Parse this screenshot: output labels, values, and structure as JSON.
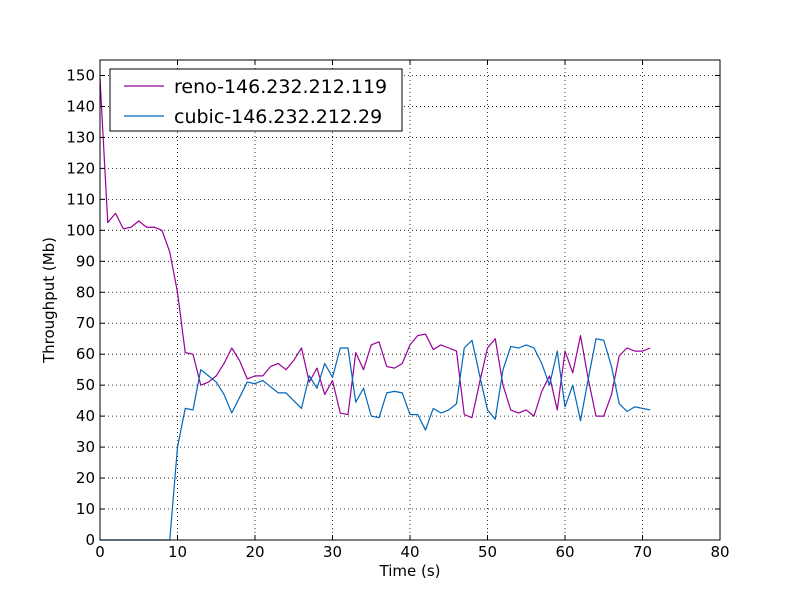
{
  "chart_data": {
    "type": "line",
    "title": "",
    "xlabel": "Time (s)",
    "ylabel": "Throughput (Mb)",
    "xlim": [
      0,
      80
    ],
    "ylim": [
      0,
      155
    ],
    "xticks": [
      0,
      10,
      20,
      30,
      40,
      50,
      60,
      70,
      80
    ],
    "yticks": [
      0,
      10,
      20,
      30,
      40,
      50,
      60,
      70,
      80,
      90,
      100,
      110,
      120,
      130,
      140,
      150
    ],
    "grid": true,
    "legend_position": "top-left",
    "series": [
      {
        "name": "reno-146.232.212.119",
        "color": "#990099",
        "x": [
          0,
          1,
          2,
          3,
          4,
          5,
          6,
          7,
          8,
          9,
          10,
          11,
          12,
          13,
          14,
          15,
          16,
          17,
          18,
          19,
          20,
          21,
          22,
          23,
          24,
          25,
          26,
          27,
          28,
          29,
          30,
          31,
          32,
          33,
          34,
          35,
          36,
          37,
          38,
          39,
          40,
          41,
          42,
          43,
          44,
          45,
          46,
          47,
          48,
          49,
          50,
          51,
          52,
          53,
          54,
          55,
          56,
          57,
          58,
          59,
          60,
          61,
          62,
          63,
          64,
          65,
          66,
          67,
          68,
          69,
          70,
          71
        ],
        "y": [
          149,
          102.5,
          105.5,
          100.5,
          101,
          103,
          101,
          101,
          100,
          93,
          80,
          60.5,
          60,
          50,
          51,
          53,
          57,
          62,
          58,
          52,
          53,
          53,
          56,
          57,
          55,
          58,
          62,
          51,
          55.5,
          47,
          51.5,
          41,
          40.5,
          60.5,
          55,
          63,
          64,
          56,
          55.5,
          57,
          63,
          66,
          66.5,
          61.5,
          63,
          62,
          61,
          40.5,
          39.5,
          51,
          62,
          65,
          50,
          42,
          41,
          42,
          40,
          48,
          53,
          42,
          61,
          54,
          66,
          52,
          40,
          40,
          47,
          59.5,
          62,
          61,
          61,
          62
        ]
      },
      {
        "name": "cubic-146.232.212.29",
        "color": "#0066bb",
        "x": [
          0,
          1,
          2,
          3,
          4,
          5,
          6,
          7,
          8,
          9,
          10,
          11,
          12,
          13,
          14,
          15,
          16,
          17,
          18,
          19,
          20,
          21,
          22,
          23,
          24,
          25,
          26,
          27,
          28,
          29,
          30,
          31,
          32,
          33,
          34,
          35,
          36,
          37,
          38,
          39,
          40,
          41,
          42,
          43,
          44,
          45,
          46,
          47,
          48,
          49,
          50,
          51,
          52,
          53,
          54,
          55,
          56,
          57,
          58,
          59,
          60,
          61,
          62,
          63,
          64,
          65,
          66,
          67,
          68,
          69,
          70,
          71
        ],
        "y": [
          0,
          0,
          0,
          0,
          0,
          0,
          0,
          0,
          0,
          0,
          30,
          42.5,
          42,
          55,
          53,
          51,
          47,
          41,
          46,
          51,
          50.5,
          51.5,
          49.5,
          47.5,
          47.5,
          45,
          42.5,
          53,
          49,
          57,
          52.5,
          62,
          62,
          44.5,
          49,
          40,
          39.5,
          47.5,
          48,
          47.5,
          40.5,
          40.5,
          35.5,
          42.5,
          41,
          42,
          44,
          62,
          64.5,
          53,
          42,
          39,
          55,
          62.5,
          62,
          63,
          62,
          57,
          50,
          61,
          43,
          50,
          38.5,
          52,
          65,
          64.5,
          56,
          44,
          41.5,
          43,
          42.5,
          42
        ]
      }
    ]
  }
}
